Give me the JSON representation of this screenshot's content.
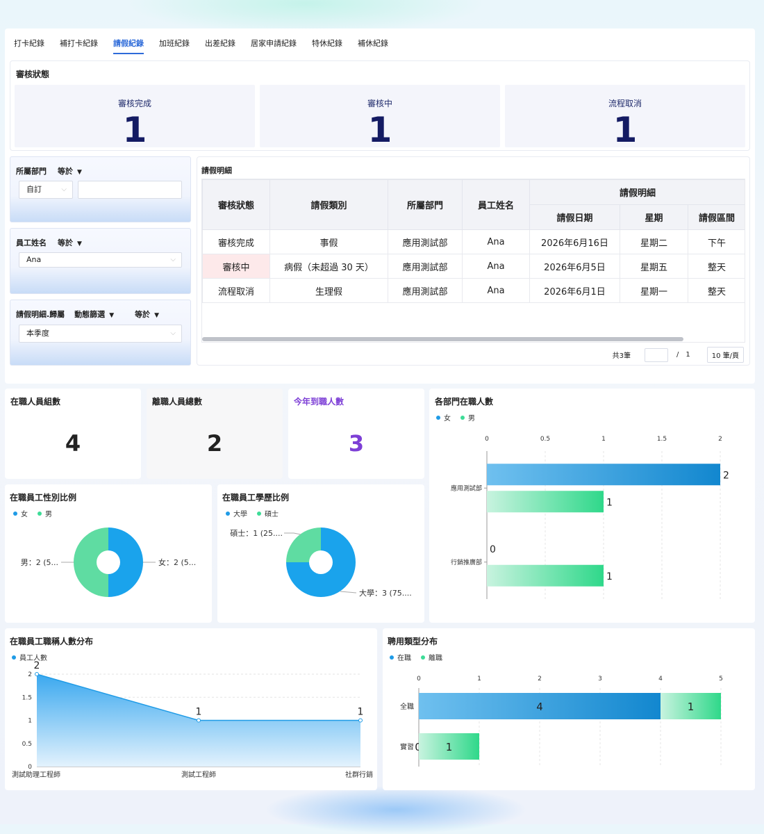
{
  "tabs": [
    "打卡紀錄",
    "補打卡紀錄",
    "請假紀錄",
    "加班紀錄",
    "出差紀錄",
    "居家申請紀錄",
    "特休紀錄",
    "補休紀錄"
  ],
  "active_tab": 2,
  "review": {
    "title": "審核狀態",
    "stats": [
      {
        "label": "審核完成",
        "value": "1"
      },
      {
        "label": "審核中",
        "value": "1"
      },
      {
        "label": "流程取消",
        "value": "1"
      }
    ]
  },
  "filters": {
    "dept": {
      "label": "所屬部門",
      "op": "等於",
      "select": "自訂",
      "input": ""
    },
    "emp": {
      "label": "員工姓名",
      "op": "等於",
      "select": "Ana"
    },
    "period": {
      "label": "請假明細.歸屬",
      "dyn": "動態篩選",
      "op": "等於",
      "select": "本季度"
    }
  },
  "leave": {
    "title": "請假明細",
    "headers": {
      "status": "審核狀態",
      "type": "請假類別",
      "dept": "所屬部門",
      "name": "員工姓名",
      "group": "請假明細",
      "date": "請假日期",
      "weekday": "星期",
      "range": "請假區間"
    },
    "rows": [
      {
        "status": "審核完成",
        "type": "事假",
        "dept": "應用測試部",
        "name": "Ana",
        "date": "2026年6月16日",
        "weekday": "星期二",
        "range": "下午"
      },
      {
        "status": "審核中",
        "type": "病假（未超過 30 天）",
        "dept": "應用測試部",
        "name": "Ana",
        "date": "2026年6月5日",
        "weekday": "星期五",
        "range": "整天"
      },
      {
        "status": "流程取消",
        "type": "生理假",
        "dept": "應用測試部",
        "name": "Ana",
        "date": "2026年6月1日",
        "weekday": "星期一",
        "range": "整天"
      }
    ],
    "pager": {
      "total": "共3筆",
      "page": "",
      "sep": "/",
      "pages": "1",
      "size": "10 筆/頁"
    }
  },
  "kpis": [
    {
      "title": "在職人員組數",
      "value": "4"
    },
    {
      "title": "離職人員總數",
      "value": "2"
    },
    {
      "title": "今年到職人數",
      "value": "3"
    }
  ],
  "colors": {
    "blue": "#1f9be6",
    "green": "#3ddc97",
    "purple": "#7d3fd6"
  },
  "chart_data": [
    {
      "type": "bar",
      "title": "各部門在職人數",
      "orientation": "horizontal",
      "categories": [
        "應用測試部",
        "行銷推廣部"
      ],
      "series": [
        {
          "name": "女",
          "values": [
            2,
            0
          ]
        },
        {
          "name": "男",
          "values": [
            1,
            1
          ]
        }
      ],
      "xticks": [
        "0",
        "0.5",
        "1",
        "1.5",
        "2"
      ],
      "xlim": [
        0,
        2
      ],
      "legend": "top-left"
    },
    {
      "type": "pie",
      "title": "在職員工性別比例",
      "legend_items": [
        "女",
        "男"
      ],
      "slices": [
        {
          "name": "女",
          "value": 2,
          "label": "女：2 (5..."
        },
        {
          "name": "男",
          "value": 2,
          "label": "男：2 (5..."
        }
      ]
    },
    {
      "type": "pie",
      "title": "在職員工學歷比例",
      "legend_items": [
        "大學",
        "碩士"
      ],
      "slices": [
        {
          "name": "大學",
          "value": 3,
          "label": "大學：3 (75...."
        },
        {
          "name": "碩士",
          "value": 1,
          "label": "碩士：1 (25...."
        }
      ]
    },
    {
      "type": "area",
      "title": "在職員工職稱人數分布",
      "legend_items": [
        "員工人數"
      ],
      "categories": [
        "測試助理工程師",
        "測試工程師",
        "社群行銷"
      ],
      "values": [
        2,
        1,
        1
      ],
      "data_labels": [
        "2",
        "1",
        "1"
      ],
      "yticks": [
        "0",
        "0.5",
        "1",
        "1.5",
        "2"
      ],
      "ylim": [
        0,
        2
      ]
    },
    {
      "type": "bar",
      "title": "聘用類型分布",
      "orientation": "horizontal",
      "stacked": true,
      "categories": [
        "全職",
        "實習"
      ],
      "series": [
        {
          "name": "在職",
          "values": [
            4,
            0
          ]
        },
        {
          "name": "離職",
          "values": [
            1,
            1
          ]
        }
      ],
      "data_labels": [
        [
          "4",
          "1"
        ],
        [
          "0",
          "1"
        ]
      ],
      "xticks": [
        "0",
        "1",
        "2",
        "3",
        "4",
        "5"
      ],
      "xlim": [
        0,
        5
      ]
    }
  ]
}
